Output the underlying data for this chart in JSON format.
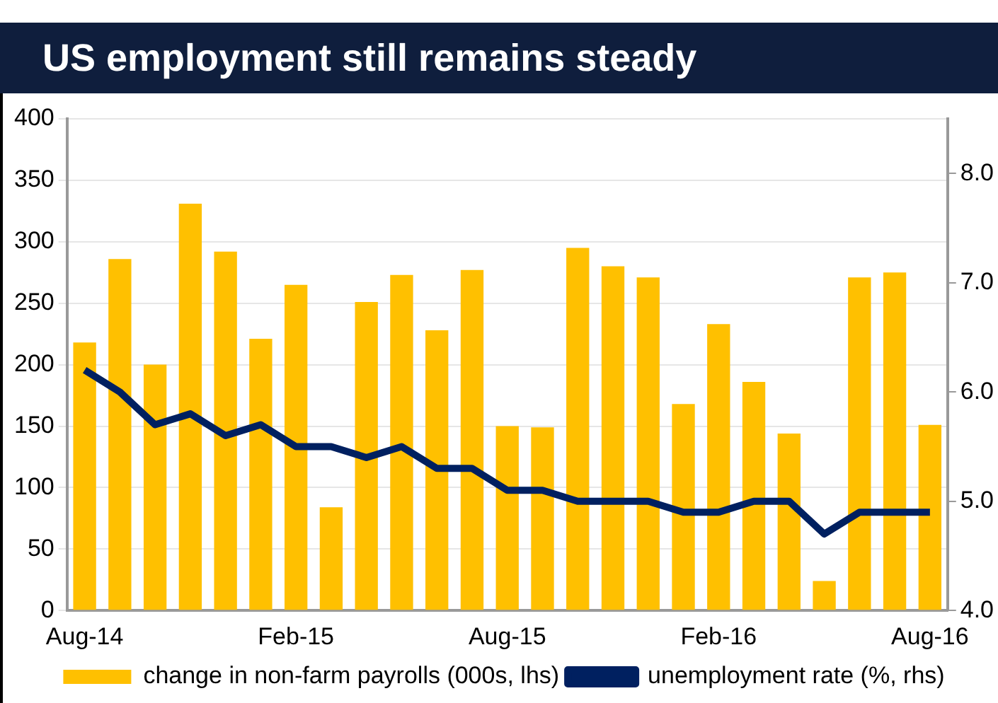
{
  "chart_data": {
    "type": "bar",
    "title": "US employment still remains steady",
    "categories": [
      "Aug-14",
      null,
      null,
      null,
      null,
      null,
      "Feb-15",
      null,
      null,
      null,
      null,
      null,
      "Aug-15",
      null,
      null,
      null,
      null,
      null,
      "Feb-16",
      null,
      null,
      null,
      null,
      null,
      "Aug-16"
    ],
    "series": [
      {
        "name": "change in non-farm payrolls (000s, lhs)",
        "color": "#ffc000",
        "values": [
          218,
          286,
          200,
          331,
          292,
          221,
          265,
          84,
          251,
          273,
          228,
          277,
          150,
          149,
          295,
          280,
          271,
          168,
          233,
          186,
          144,
          24,
          271,
          275,
          151
        ]
      },
      {
        "name": "unemployment rate (%, rhs)",
        "type": "line",
        "axis": "y2",
        "color": "#002060",
        "values": [
          6.2,
          6.0,
          5.7,
          5.8,
          5.6,
          5.7,
          5.5,
          5.5,
          5.4,
          5.5,
          5.3,
          5.3,
          5.1,
          5.1,
          5.0,
          5.0,
          5.0,
          4.9,
          4.9,
          5.0,
          5.0,
          4.7,
          4.9,
          4.9,
          4.9
        ]
      }
    ],
    "ylim": [
      0,
      400
    ],
    "yticks": [
      0,
      50,
      100,
      150,
      200,
      250,
      300,
      350,
      400
    ],
    "y2lim": [
      4,
      8.5
    ],
    "y2ticks": [
      {
        "value": 4,
        "label": "4.0"
      },
      {
        "value": 5,
        "label": "5.0"
      },
      {
        "value": 6,
        "label": "6.0"
      },
      {
        "value": 7,
        "label": "7.0"
      },
      {
        "value": 8,
        "label": "8.0"
      }
    ],
    "grid": "y",
    "legend": "bottom",
    "marker": "none",
    "line_style": "solid"
  }
}
